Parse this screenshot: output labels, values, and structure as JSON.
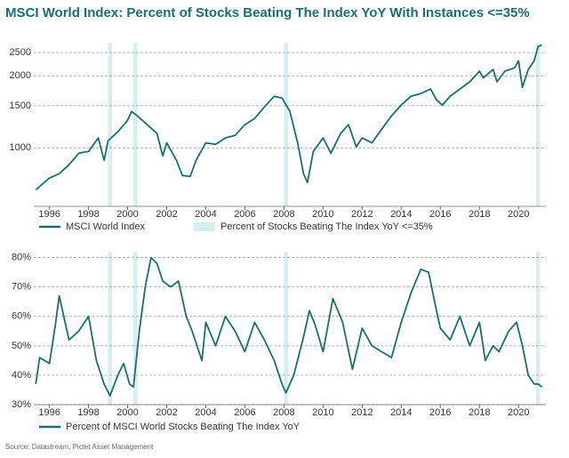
{
  "title": "MSCI World Index: Percent of Stocks Beating The Index YoY With Instances <=35%",
  "source": "Source: Datastream, Pictet Asset Management",
  "chart_data": [
    {
      "type": "line",
      "log_y": true,
      "grid": true,
      "xlim": [
        1995.2,
        2021.4
      ],
      "xticks": [
        1996,
        1998,
        2000,
        2002,
        2004,
        2006,
        2008,
        2010,
        2012,
        2014,
        2016,
        2018,
        2020
      ],
      "ylim": [
        570,
        2750
      ],
      "yticks": [
        1000,
        1500,
        2000,
        2500
      ],
      "highlight": {
        "name": "Percent of Stocks Beating The Index YoY <=35%",
        "color": "#d3efef",
        "ranges": [
          [
            1999.0,
            1999.2
          ],
          [
            2000.3,
            2000.5
          ],
          [
            2008.0,
            2008.2
          ],
          [
            2020.9,
            2021.1
          ]
        ]
      },
      "x": [
        1995.3,
        1996.0,
        1996.5,
        1997.0,
        1997.5,
        1998.0,
        1998.5,
        1998.8,
        1999.0,
        1999.5,
        2000.0,
        2000.2,
        2000.5,
        2001.0,
        2001.5,
        2001.8,
        2002.0,
        2002.5,
        2002.8,
        2003.2,
        2003.5,
        2004.0,
        2004.5,
        2005.0,
        2005.5,
        2006.0,
        2006.5,
        2007.0,
        2007.5,
        2007.9,
        2008.3,
        2008.7,
        2009.0,
        2009.2,
        2009.5,
        2010.0,
        2010.4,
        2010.9,
        2011.3,
        2011.7,
        2012.0,
        2012.5,
        2013.0,
        2013.5,
        2014.0,
        2014.5,
        2015.0,
        2015.5,
        2015.8,
        2016.1,
        2016.5,
        2017.0,
        2017.5,
        2018.0,
        2018.2,
        2018.7,
        2018.9,
        2019.3,
        2019.8,
        2020.0,
        2020.2,
        2020.5,
        2020.8,
        2021.0,
        2021.2
      ],
      "series": [
        {
          "name": "MSCI World Index",
          "color": "#1b6f6a",
          "values": [
            668,
            748,
            780,
            850,
            950,
            966,
            1100,
            887,
            1070,
            1167,
            1303,
            1420,
            1360,
            1250,
            1150,
            926,
            1050,
            887,
            767,
            760,
            887,
            1050,
            1035,
            1100,
            1127,
            1250,
            1327,
            1483,
            1643,
            1615,
            1420,
            1050,
            780,
            716,
            966,
            1100,
            950,
            1150,
            1250,
            1010,
            1100,
            1050,
            1197,
            1360,
            1510,
            1643,
            1686,
            1761,
            1588,
            1510,
            1643,
            1761,
            1887,
            2090,
            1960,
            2125,
            1887,
            2090,
            2160,
            2310,
            1790,
            2125,
            2310,
            2650,
            2690
          ]
        }
      ]
    },
    {
      "type": "line",
      "grid": true,
      "xlim": [
        1995.2,
        2021.4
      ],
      "xticks": [
        1996,
        1998,
        2000,
        2002,
        2004,
        2006,
        2008,
        2010,
        2012,
        2014,
        2016,
        2018,
        2020
      ],
      "ylim": [
        30,
        82
      ],
      "yticks": [
        {
          "value": 30,
          "label": "30%"
        },
        {
          "value": 40,
          "label": "40%"
        },
        {
          "value": 50,
          "label": "50%"
        },
        {
          "value": 60,
          "label": "60%"
        },
        {
          "value": 70,
          "label": "70%"
        },
        {
          "value": 80,
          "label": "80%"
        }
      ],
      "highlight": {
        "color": "#d3efef",
        "ranges": [
          [
            1999.0,
            1999.2
          ],
          [
            2000.3,
            2000.5
          ],
          [
            2008.0,
            2008.2
          ],
          [
            2020.9,
            2021.1
          ]
        ]
      },
      "x": [
        1995.3,
        1995.5,
        1996.0,
        1996.3,
        1996.5,
        1997.0,
        1997.5,
        1998.0,
        1998.4,
        1998.8,
        1999.1,
        1999.5,
        1999.8,
        2000.1,
        2000.3,
        2000.6,
        2000.9,
        2001.2,
        2001.5,
        2001.8,
        2002.2,
        2002.6,
        2003.0,
        2003.3,
        2003.8,
        2004.0,
        2004.5,
        2005.0,
        2005.5,
        2006.0,
        2006.5,
        2007.0,
        2007.5,
        2007.9,
        2008.1,
        2008.5,
        2009.0,
        2009.3,
        2009.6,
        2010.0,
        2010.5,
        2011.0,
        2011.5,
        2012.0,
        2012.5,
        2013.0,
        2013.5,
        2014.0,
        2014.5,
        2015.0,
        2015.4,
        2015.8,
        2016.0,
        2016.5,
        2017.0,
        2017.5,
        2018.0,
        2018.3,
        2018.7,
        2019.0,
        2019.5,
        2019.9,
        2020.2,
        2020.5,
        2020.8,
        2021.0,
        2021.2
      ],
      "series": [
        {
          "name": "Percent of MSCI World Stocks Beating The Index YoY",
          "color": "#1b6f6a",
          "values": [
            37,
            46,
            44,
            57,
            67,
            52,
            55,
            60,
            45,
            37,
            33,
            40,
            44,
            37,
            36,
            55,
            70,
            80,
            78,
            72,
            70,
            72,
            60,
            55,
            45,
            58,
            50,
            60,
            55,
            48,
            58,
            52,
            45,
            37,
            34,
            40,
            53,
            62,
            57,
            48,
            66,
            58,
            42,
            56,
            50,
            48,
            46,
            58,
            68,
            76,
            75,
            62,
            56,
            52,
            60,
            50,
            58,
            45,
            50,
            48,
            55,
            58,
            50,
            40,
            37,
            37,
            36
          ]
        }
      ]
    }
  ]
}
